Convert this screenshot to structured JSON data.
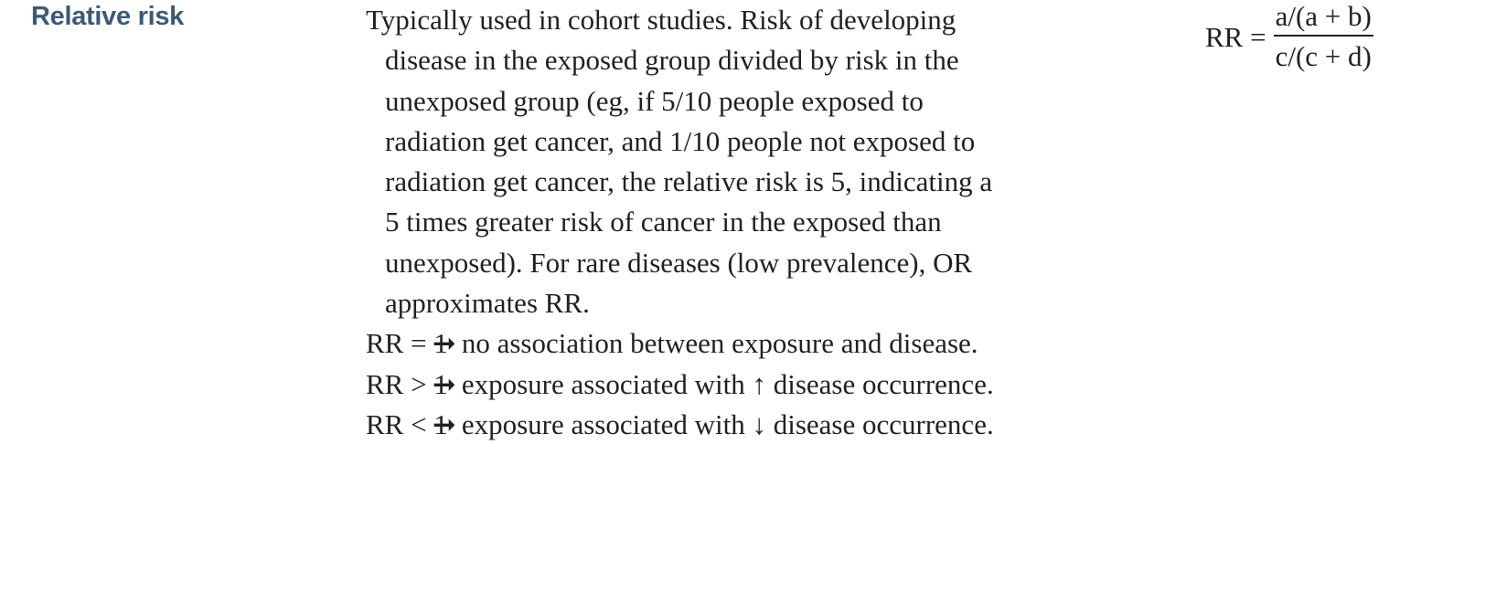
{
  "term": "Relative risk",
  "description": "Typically used in cohort studies. Risk of developing disease in the exposed group divided by risk in the unexposed group (eg, if 5/10 people exposed to radiation get cancer, and 1/10 people not exposed to radiation get cancer, the relative risk is 5, indicating a 5 times greater risk of cancer in the exposed than unexposed). For rare diseases (low prevalence), OR approximates RR.",
  "interpretations": [
    {
      "condition": "RR = 1",
      "arrow": "➞",
      "text": "no association between exposure and disease."
    },
    {
      "condition": "RR > 1",
      "arrow": "➞",
      "text": "exposure associated with ↑ disease occurrence."
    },
    {
      "condition": "RR < 1",
      "arrow": "➞",
      "text": "exposure associated with ↓ disease occurrence."
    }
  ],
  "formula": {
    "lhs": "RR =",
    "numerator": "a/(a + b)",
    "denominator": "c/(c + d)"
  }
}
